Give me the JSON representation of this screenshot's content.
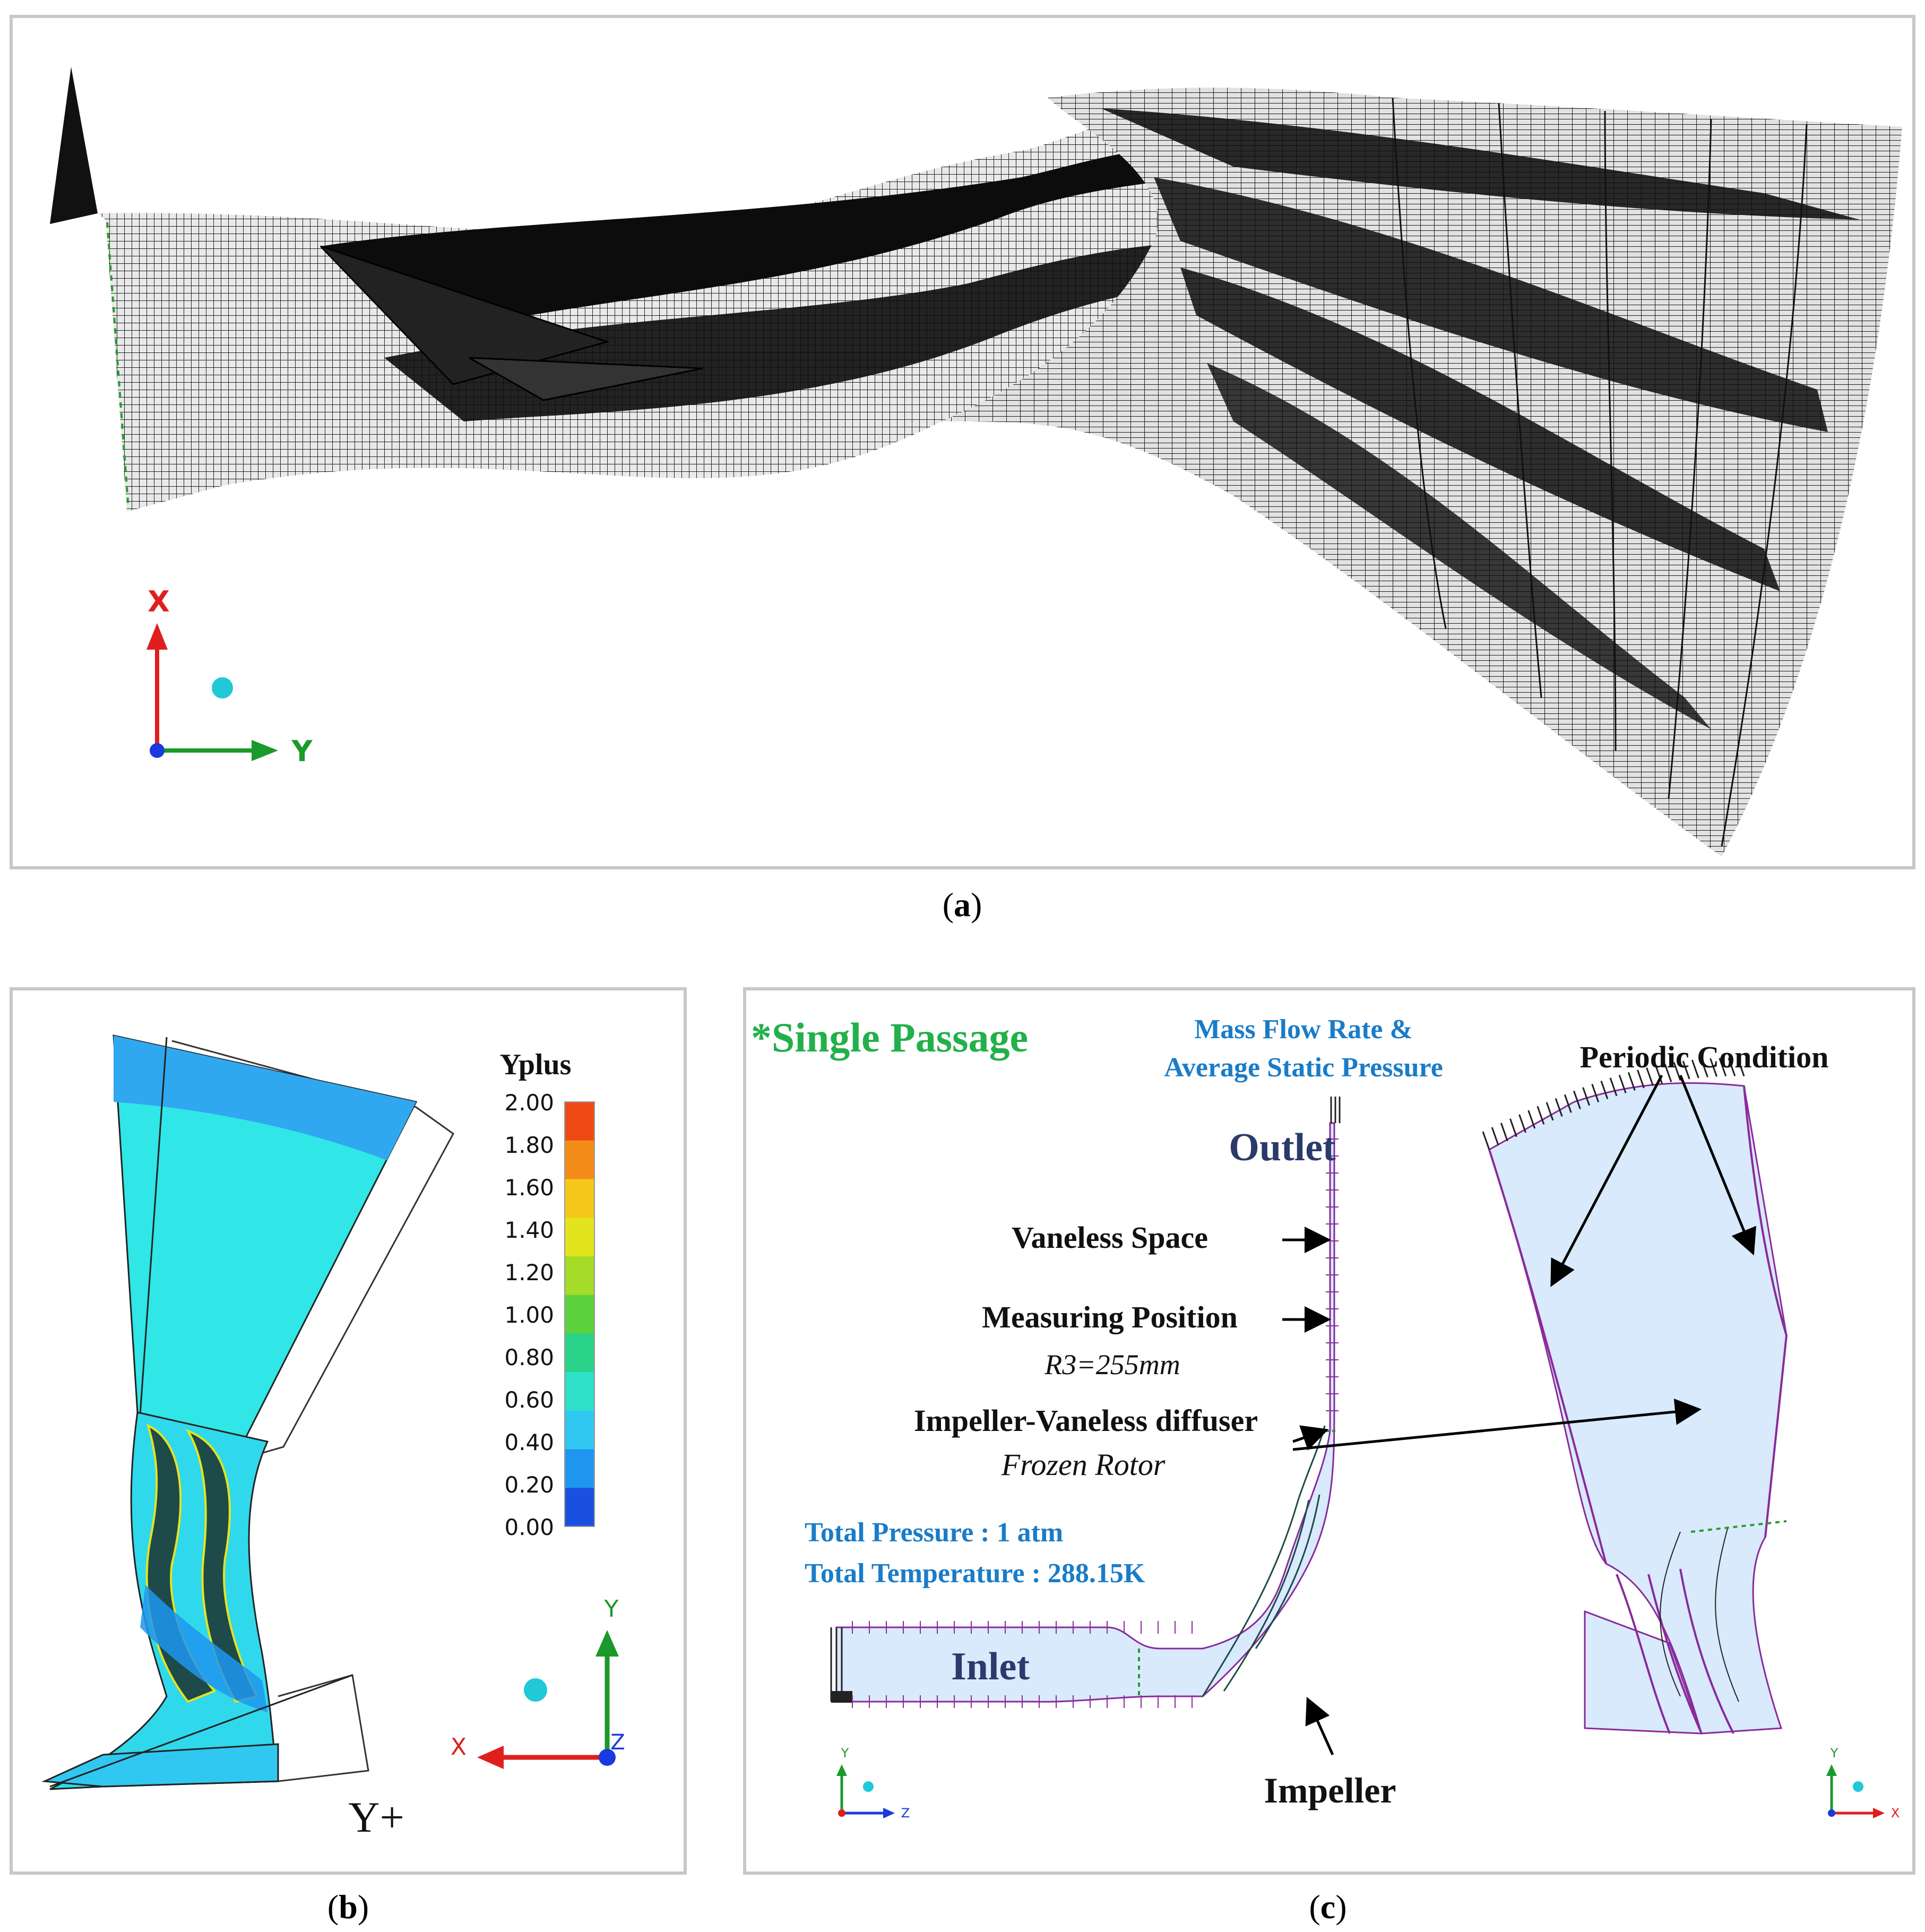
{
  "panel_a": {
    "caption_letter": "a",
    "axes": {
      "up": "X",
      "right": "Y"
    }
  },
  "panel_b": {
    "legend_title": "Yplus",
    "legend_ticks": [
      "2.00",
      "1.80",
      "1.60",
      "1.40",
      "1.20",
      "1.00",
      "0.80",
      "0.60",
      "0.40",
      "0.20",
      "0.00"
    ],
    "legend_colors": [
      "#f04a14",
      "#f48c1a",
      "#f4c81a",
      "#e4e41e",
      "#a4dc28",
      "#5cd23c",
      "#2ad28a",
      "#2ee0c8",
      "#30c8f0",
      "#1e96f0",
      "#1a50e0"
    ],
    "label": "Y+",
    "axes": {
      "up": "Y",
      "left": "X",
      "center": "Z"
    },
    "caption_letter": "b"
  },
  "panel_c": {
    "title": "*Single Passage",
    "bc_outlet_line1": "Mass Flow Rate &",
    "bc_outlet_line2": "Average Static Pressure",
    "periodic": "Periodic Condition",
    "outlet": "Outlet",
    "vaneless": "Vaneless Space",
    "measuring": "Measuring Position",
    "r3": "R3=255mm",
    "interface": "Impeller-Vaneless  diffuser",
    "frozen": "Frozen Rotor",
    "total_pressure": "Total Pressure : 1 atm",
    "total_temperature": "Total Temperature : 288.15K",
    "inlet": "Inlet",
    "impeller": "Impeller",
    "axes_left": {
      "up": "Y",
      "right": "Z"
    },
    "axes_right": {
      "up": "Y",
      "right": "X"
    },
    "caption_letter": "c"
  },
  "colors": {
    "green_title": "#22b04a",
    "blue_label": "#1a7cc8",
    "navy": "#2a3a6a",
    "purple": "#8a2a9a",
    "fluid": "#d8eafc"
  }
}
